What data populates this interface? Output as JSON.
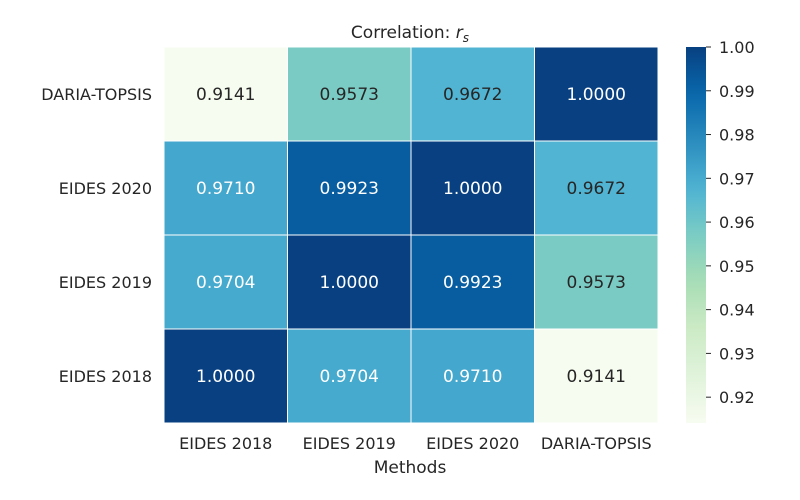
{
  "chart_data": {
    "type": "heatmap",
    "title": "Correlation: ",
    "title_symbol": "r",
    "title_subscript": "s",
    "xlabel": "Methods",
    "ylabel": "",
    "x_categories": [
      "EIDES 2018",
      "EIDES 2019",
      "EIDES 2020",
      "DARIA-TOPSIS"
    ],
    "y_categories": [
      "DARIA-TOPSIS",
      "EIDES 2020",
      "EIDES 2019",
      "EIDES 2018"
    ],
    "values": [
      [
        0.9141,
        0.9573,
        0.9672,
        1.0
      ],
      [
        0.971,
        0.9923,
        1.0,
        0.9672
      ],
      [
        0.9704,
        1.0,
        0.9923,
        0.9573
      ],
      [
        1.0,
        0.9704,
        0.971,
        0.9141
      ]
    ],
    "cell_labels": [
      [
        "0.9141",
        "0.9573",
        "0.9672",
        "1.0000"
      ],
      [
        "0.9710",
        "0.9923",
        "1.0000",
        "0.9672"
      ],
      [
        "0.9704",
        "1.0000",
        "0.9923",
        "0.9573"
      ],
      [
        "1.0000",
        "0.9704",
        "0.9710",
        "0.9141"
      ]
    ],
    "colormap": "GnBu",
    "color_range": [
      0.9141,
      1.0
    ],
    "colorbar_ticks": [
      0.92,
      0.93,
      0.94,
      0.95,
      0.96,
      0.97,
      0.98,
      0.99,
      1.0
    ],
    "colorbar_tick_labels": [
      "0.92",
      "0.93",
      "0.94",
      "0.95",
      "0.96",
      "0.97",
      "0.98",
      "0.99",
      "1.00"
    ],
    "colorbar_position": "right",
    "grid": false,
    "legend": "none"
  }
}
